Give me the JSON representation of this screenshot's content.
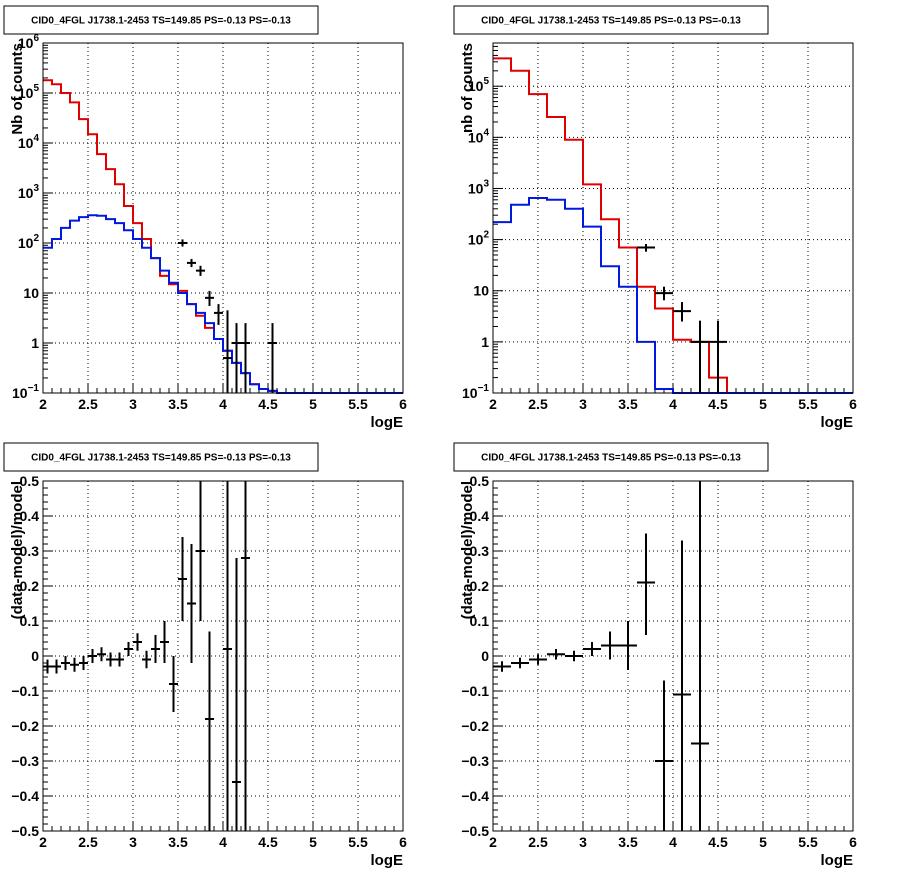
{
  "colors": {
    "data": "#000000",
    "total": "#e00000",
    "source": "#0018e0",
    "grid": "#000000",
    "axis": "#000000"
  },
  "chart_data": [
    {
      "type": "step-histogram",
      "title": "CID0_4FGL J1738.1-2453 TS=149.85 PS=-0.13 PS=-0.13",
      "xlabel": "logE",
      "ylabel": "Nb of counts",
      "xlim": [
        2,
        6
      ],
      "ylim": [
        0.1,
        1000000
      ],
      "log_y": true,
      "grid": true,
      "x_ticks": [
        "2",
        "2.5",
        "3",
        "3.5",
        "4",
        "4.5",
        "5",
        "5.5",
        "6"
      ],
      "y_ticks": [
        {
          "v": 0.1,
          "b": "10",
          "e": "−1"
        },
        {
          "v": 1,
          "b": "1",
          "e": ""
        },
        {
          "v": 10,
          "b": "10",
          "e": ""
        },
        {
          "v": 100,
          "b": "10",
          "e": "2"
        },
        {
          "v": 1000,
          "b": "10",
          "e": "3"
        },
        {
          "v": 10000,
          "b": "10",
          "e": "4"
        },
        {
          "v": 100000,
          "b": "10",
          "e": "5"
        },
        {
          "v": 1000000,
          "b": "10",
          "e": "6"
        }
      ],
      "bin_edges": [
        2.0,
        2.1,
        2.2,
        2.3,
        2.4,
        2.5,
        2.6,
        2.7,
        2.8,
        2.9,
        3.0,
        3.1,
        3.2,
        3.3,
        3.4,
        3.5,
        3.6,
        3.7,
        3.8,
        3.9,
        4.0,
        4.1,
        4.2,
        4.3,
        4.4,
        4.5,
        4.6,
        4.7,
        4.8,
        4.9,
        5.0,
        5.1,
        5.2,
        5.3,
        5.4,
        5.5,
        5.6,
        5.7,
        5.8,
        5.9,
        6.0
      ],
      "series": [
        {
          "role": "total",
          "values": [
            180000,
            150000,
            100000,
            65000,
            30000,
            15000,
            6000,
            3000,
            1500,
            550,
            250,
            120,
            50,
            22,
            15,
            11,
            6,
            3.5,
            2,
            1.2,
            0.7,
            0.4,
            0.25,
            0.15,
            0.12,
            0.11,
            0.1,
            0.1,
            0.1,
            0.1,
            0.1,
            0.1,
            0.1,
            0.1,
            0.1,
            0.1,
            0.1,
            0.1,
            0.1,
            0.1
          ]
        },
        {
          "role": "source",
          "values": [
            80,
            120,
            200,
            280,
            330,
            360,
            350,
            300,
            250,
            180,
            120,
            80,
            50,
            28,
            16,
            10,
            6,
            4,
            2.5,
            1.2,
            0.7,
            0.4,
            0.25,
            0.15,
            0.12,
            0.11,
            0.1,
            0.1,
            0.1,
            0.1,
            0.1,
            0.1,
            0.1,
            0.1,
            0.1,
            0.1,
            0.1,
            0.1,
            0.1,
            0.1
          ]
        }
      ],
      "points": [
        {
          "x": 3.55,
          "y": 100,
          "lo": 85,
          "hi": 118,
          "xe": 0.05
        },
        {
          "x": 3.65,
          "y": 40,
          "lo": 33,
          "hi": 48,
          "xe": 0.05
        },
        {
          "x": 3.75,
          "y": 28,
          "lo": 22,
          "hi": 35,
          "xe": 0.05
        },
        {
          "x": 3.85,
          "y": 8,
          "lo": 5.5,
          "hi": 11,
          "xe": 0.05
        },
        {
          "x": 3.95,
          "y": 4,
          "lo": 2.3,
          "hi": 6,
          "xe": 0.05
        },
        {
          "x": 4.05,
          "y": 0.5,
          "lo": 0.1,
          "hi": 4.5,
          "xe": 0.05
        },
        {
          "x": 4.15,
          "y": 1,
          "lo": 0.1,
          "hi": 2.5,
          "xe": 0.05
        },
        {
          "x": 4.25,
          "y": 1,
          "lo": 0.1,
          "hi": 2.5,
          "xe": 0.05
        },
        {
          "x": 4.55,
          "y": 1,
          "lo": 0.1,
          "hi": 2.5,
          "xe": 0.05
        }
      ]
    },
    {
      "type": "step-histogram",
      "title": "CID0_4FGL J1738.1-2453 TS=149.85 PS=-0.13 PS=-0.13",
      "xlabel": "logE",
      "ylabel": "nb of counts",
      "xlim": [
        2,
        6
      ],
      "ylim": [
        0.1,
        700000
      ],
      "log_y": true,
      "grid": true,
      "x_ticks": [
        "2",
        "2.5",
        "3",
        "3.5",
        "4",
        "4.5",
        "5",
        "5.5",
        "6"
      ],
      "y_ticks": [
        {
          "v": 0.1,
          "b": "10",
          "e": "−1"
        },
        {
          "v": 1,
          "b": "1",
          "e": ""
        },
        {
          "v": 10,
          "b": "10",
          "e": ""
        },
        {
          "v": 100,
          "b": "10",
          "e": "2"
        },
        {
          "v": 1000,
          "b": "10",
          "e": "3"
        },
        {
          "v": 10000,
          "b": "10",
          "e": "4"
        },
        {
          "v": 100000,
          "b": "10",
          "e": "5"
        }
      ],
      "bin_edges": [
        2.0,
        2.2,
        2.4,
        2.6,
        2.8,
        3.0,
        3.2,
        3.4,
        3.6,
        3.8,
        4.0,
        4.2,
        4.4,
        4.6,
        4.8,
        5.0,
        5.2,
        5.4,
        5.6,
        5.8,
        6.0
      ],
      "series": [
        {
          "role": "total",
          "values": [
            350000,
            200000,
            70000,
            25000,
            9000,
            1200,
            250,
            70,
            12,
            4.5,
            1.1,
            1,
            0.2,
            0.1,
            0.1,
            0.1,
            0.1,
            0.1,
            0.1,
            0.1
          ]
        },
        {
          "role": "source",
          "values": [
            220,
            480,
            650,
            600,
            400,
            180,
            30,
            12,
            1,
            0.12,
            0.1,
            0.1,
            0.1,
            0.1,
            0.1,
            0.1,
            0.1,
            0.1,
            0.1,
            0.1
          ]
        }
      ],
      "points": [
        {
          "x": 3.7,
          "y": 70,
          "lo": 58,
          "hi": 82,
          "xe": 0.1
        },
        {
          "x": 3.9,
          "y": 9,
          "lo": 6.5,
          "hi": 12,
          "xe": 0.1
        },
        {
          "x": 4.1,
          "y": 4,
          "lo": 2.5,
          "hi": 6,
          "xe": 0.1
        },
        {
          "x": 4.3,
          "y": 1,
          "lo": 0.1,
          "hi": 2.6,
          "xe": 0.1
        },
        {
          "x": 4.5,
          "y": 1,
          "lo": 0.1,
          "hi": 2.6,
          "xe": 0.1
        }
      ]
    },
    {
      "type": "scatter-errorbars",
      "title": "CID0_4FGL J1738.1-2453 TS=149.85 PS=-0.13 PS=-0.13",
      "xlabel": "logE",
      "ylabel": "(data-model)/model",
      "xlim": [
        2,
        6
      ],
      "ylim": [
        -0.5,
        0.5
      ],
      "log_y": false,
      "grid": true,
      "x_ticks": [
        "2",
        "2.5",
        "3",
        "3.5",
        "4",
        "4.5",
        "5",
        "5.5",
        "6"
      ],
      "y_ticks": [
        "−0.5",
        "−0.4",
        "−0.3",
        "−0.2",
        "−0.1",
        "0",
        "0.1",
        "0.2",
        "0.3",
        "0.4",
        "0.5"
      ],
      "points": [
        {
          "x": 2.05,
          "y": -0.03,
          "lo": -0.05,
          "hi": -0.01,
          "xe": 0.05
        },
        {
          "x": 2.15,
          "y": -0.03,
          "lo": -0.05,
          "hi": -0.01,
          "xe": 0.05
        },
        {
          "x": 2.25,
          "y": -0.02,
          "lo": -0.04,
          "hi": 0.0,
          "xe": 0.05
        },
        {
          "x": 2.35,
          "y": -0.025,
          "lo": -0.045,
          "hi": -0.005,
          "xe": 0.05
        },
        {
          "x": 2.45,
          "y": -0.02,
          "lo": -0.04,
          "hi": 0.0,
          "xe": 0.05
        },
        {
          "x": 2.55,
          "y": 0.0,
          "lo": -0.02,
          "hi": 0.02,
          "xe": 0.05
        },
        {
          "x": 2.65,
          "y": 0.005,
          "lo": -0.015,
          "hi": 0.025,
          "xe": 0.05
        },
        {
          "x": 2.75,
          "y": -0.01,
          "lo": -0.03,
          "hi": 0.01,
          "xe": 0.05
        },
        {
          "x": 2.85,
          "y": -0.01,
          "lo": -0.03,
          "hi": 0.01,
          "xe": 0.05
        },
        {
          "x": 2.95,
          "y": 0.02,
          "lo": 0.0,
          "hi": 0.04,
          "xe": 0.05
        },
        {
          "x": 3.05,
          "y": 0.04,
          "lo": 0.015,
          "hi": 0.065,
          "xe": 0.05
        },
        {
          "x": 3.15,
          "y": -0.01,
          "lo": -0.035,
          "hi": 0.015,
          "xe": 0.05
        },
        {
          "x": 3.25,
          "y": 0.02,
          "lo": -0.02,
          "hi": 0.06,
          "xe": 0.05
        },
        {
          "x": 3.35,
          "y": 0.04,
          "lo": -0.02,
          "hi": 0.1,
          "xe": 0.05
        },
        {
          "x": 3.45,
          "y": -0.08,
          "lo": -0.16,
          "hi": 0.0,
          "xe": 0.05
        },
        {
          "x": 3.55,
          "y": 0.22,
          "lo": 0.1,
          "hi": 0.34,
          "xe": 0.05
        },
        {
          "x": 3.65,
          "y": 0.15,
          "lo": -0.02,
          "hi": 0.32,
          "xe": 0.05
        },
        {
          "x": 3.75,
          "y": 0.3,
          "lo": 0.1,
          "hi": 0.5,
          "xe": 0.05
        },
        {
          "x": 3.85,
          "y": -0.18,
          "lo": -0.5,
          "hi": 0.07,
          "xe": 0.05
        },
        {
          "x": 4.05,
          "y": 0.02,
          "lo": -0.5,
          "hi": 0.5,
          "xe": 0.05
        },
        {
          "x": 4.15,
          "y": -0.36,
          "lo": -0.5,
          "hi": 0.28,
          "xe": 0.05
        },
        {
          "x": 4.25,
          "y": 0.28,
          "lo": -0.5,
          "hi": 0.5,
          "xe": 0.05
        }
      ]
    },
    {
      "type": "scatter-errorbars",
      "title": "CID0_4FGL J1738.1-2453 TS=149.85 PS=-0.13 PS=-0.13",
      "xlabel": "logE",
      "ylabel": "(data-model)/model",
      "xlim": [
        2,
        6
      ],
      "ylim": [
        -0.5,
        0.5
      ],
      "log_y": false,
      "grid": true,
      "x_ticks": [
        "2",
        "2.5",
        "3",
        "3.5",
        "4",
        "4.5",
        "5",
        "5.5",
        "6"
      ],
      "y_ticks": [
        "−0.5",
        "−0.4",
        "−0.3",
        "−0.2",
        "−0.1",
        "0",
        "0.1",
        "0.2",
        "0.3",
        "0.4",
        "0.5"
      ],
      "points": [
        {
          "x": 2.1,
          "y": -0.03,
          "lo": -0.045,
          "hi": -0.015,
          "xe": 0.1
        },
        {
          "x": 2.3,
          "y": -0.02,
          "lo": -0.035,
          "hi": -0.005,
          "xe": 0.1
        },
        {
          "x": 2.5,
          "y": -0.01,
          "lo": -0.025,
          "hi": 0.005,
          "xe": 0.1
        },
        {
          "x": 2.7,
          "y": 0.005,
          "lo": -0.01,
          "hi": 0.02,
          "xe": 0.1
        },
        {
          "x": 2.9,
          "y": 0.0,
          "lo": -0.015,
          "hi": 0.015,
          "xe": 0.1
        },
        {
          "x": 3.1,
          "y": 0.02,
          "lo": 0.0,
          "hi": 0.04,
          "xe": 0.1
        },
        {
          "x": 3.3,
          "y": 0.03,
          "lo": -0.01,
          "hi": 0.07,
          "xe": 0.1
        },
        {
          "x": 3.5,
          "y": 0.03,
          "lo": -0.04,
          "hi": 0.1,
          "xe": 0.1
        },
        {
          "x": 3.7,
          "y": 0.21,
          "lo": 0.06,
          "hi": 0.35,
          "xe": 0.1
        },
        {
          "x": 3.9,
          "y": -0.3,
          "lo": -0.5,
          "hi": -0.07,
          "xe": 0.1
        },
        {
          "x": 4.1,
          "y": -0.11,
          "lo": -0.5,
          "hi": 0.33,
          "xe": 0.1
        },
        {
          "x": 4.3,
          "y": -0.25,
          "lo": -0.5,
          "hi": 0.5,
          "xe": 0.1
        }
      ]
    }
  ]
}
